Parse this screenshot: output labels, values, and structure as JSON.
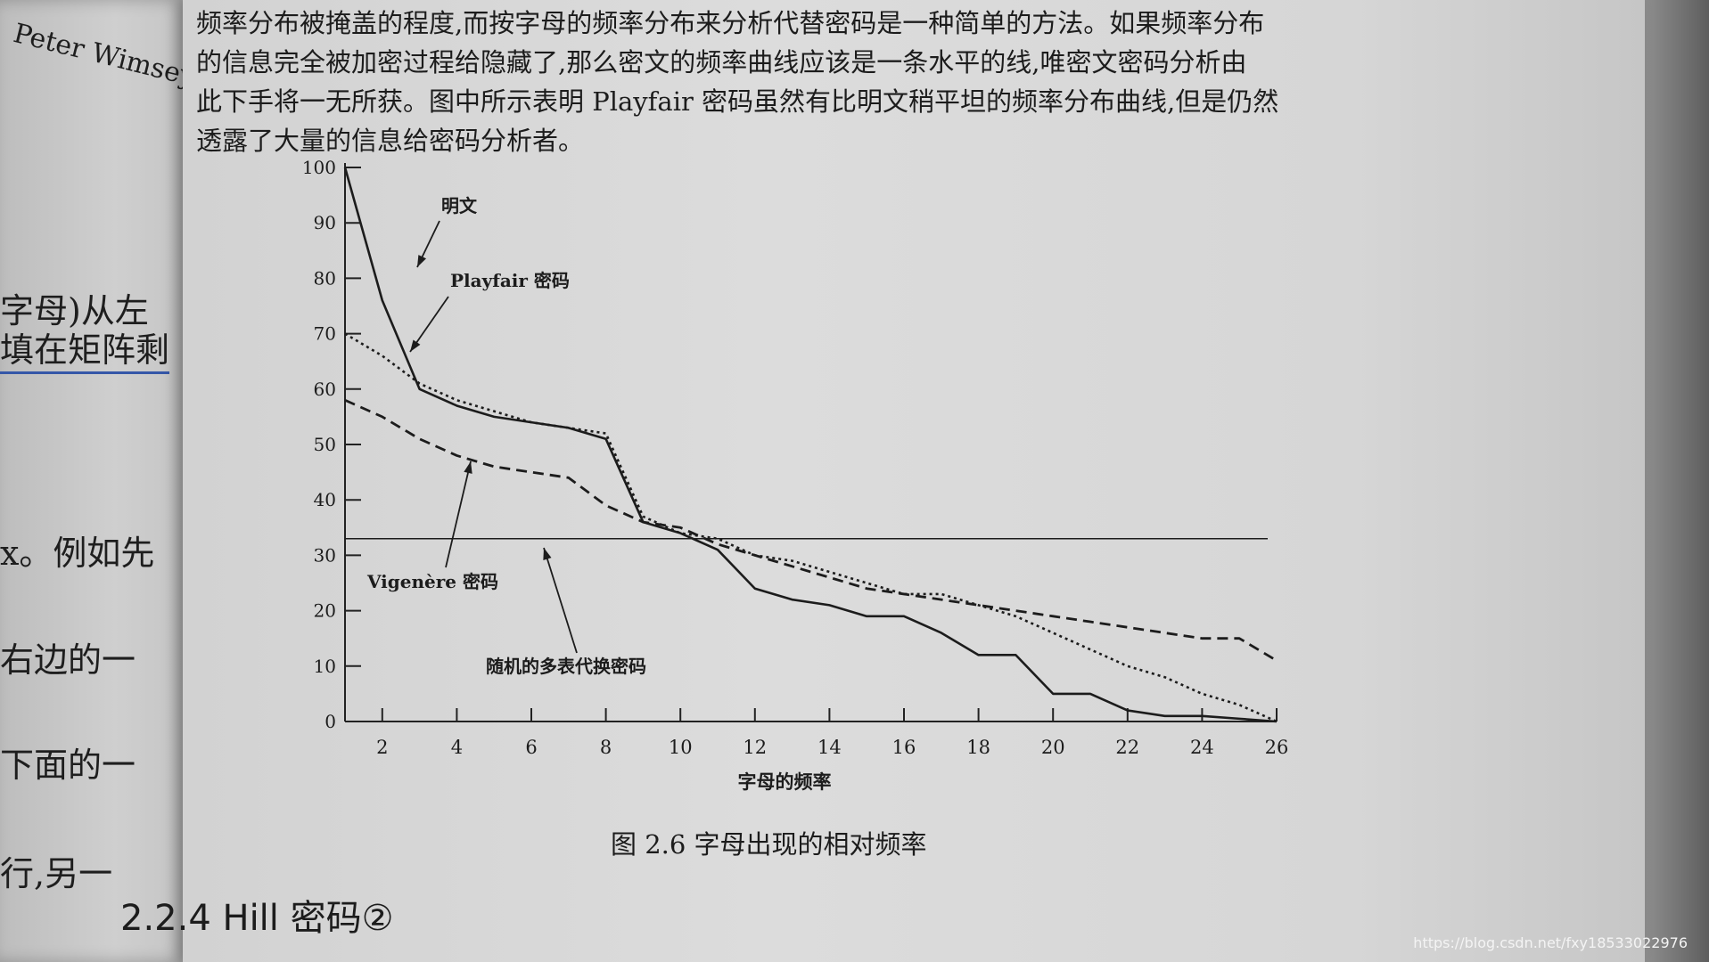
{
  "left_page": {
    "fragments": [
      "Peter Wimsey",
      "字母)从左",
      "填在矩阵剩",
      "x。例如先",
      "右边的一",
      "下面的一",
      "行,另一"
    ]
  },
  "paragraph": {
    "lines": [
      "频率分布被掩盖的程度,而按字母的频率分布来分析代替密码是一种简单的方法。如果频率分布",
      "的信息完全被加密过程给隐藏了,那么密文的频率曲线应该是一条水平的线,唯密文密码分析由",
      "此下手将一无所获。图中所示表明 Playfair 密码虽然有比明文稍平坦的频率分布曲线,但是仍然",
      "透露了大量的信息给密码分析者。"
    ]
  },
  "chart_data": {
    "type": "line",
    "title": "",
    "xlabel": "字母的频率",
    "ylabel": "",
    "xlim": [
      1,
      26
    ],
    "ylim": [
      0,
      100
    ],
    "x_ticks": [
      2,
      4,
      6,
      8,
      10,
      12,
      14,
      16,
      18,
      20,
      22,
      24,
      26
    ],
    "y_ticks": [
      0,
      10,
      20,
      30,
      40,
      50,
      60,
      70,
      80,
      90,
      100
    ],
    "grid": false,
    "annotations": [
      "明文",
      "Playfair 密码",
      "Vigenère 密码",
      "随机的多表代换密码"
    ],
    "series": [
      {
        "name": "明文",
        "style": "solid",
        "x": [
          1,
          2,
          3,
          4,
          5,
          6,
          7,
          8,
          9,
          10,
          11,
          12,
          13,
          14,
          15,
          16,
          17,
          18,
          19,
          20,
          21,
          22,
          23,
          24,
          25,
          26
        ],
        "y": [
          100,
          76,
          60,
          57,
          55,
          54,
          53,
          51,
          36,
          34,
          31,
          24,
          22,
          21,
          19,
          19,
          16,
          12,
          12,
          5,
          5,
          2,
          1,
          1,
          0.5,
          0
        ]
      },
      {
        "name": "Playfair 密码",
        "style": "dotted",
        "x": [
          1,
          2,
          3,
          4,
          5,
          6,
          7,
          8,
          9,
          10,
          11,
          12,
          13,
          14,
          15,
          16,
          17,
          18,
          19,
          20,
          21,
          22,
          23,
          24,
          25,
          26
        ],
        "y": [
          70,
          66,
          61,
          58,
          56,
          54,
          53,
          52,
          37,
          34,
          33,
          30,
          29,
          27,
          25,
          23,
          23,
          21,
          19,
          16,
          13,
          10,
          8,
          5,
          3,
          0
        ]
      },
      {
        "name": "Vigenère 密码",
        "style": "dashed",
        "x": [
          1,
          2,
          3,
          4,
          5,
          6,
          7,
          8,
          9,
          10,
          11,
          12,
          13,
          14,
          15,
          16,
          17,
          18,
          19,
          20,
          21,
          22,
          23,
          24,
          25,
          26
        ],
        "y": [
          58,
          55,
          51,
          48,
          46,
          45,
          44,
          39,
          36,
          35,
          32,
          30,
          28,
          26,
          24,
          23,
          22,
          21,
          20,
          19,
          18,
          17,
          16,
          15,
          15,
          11
        ]
      },
      {
        "name": "随机的多表代换密码",
        "style": "solid-thin",
        "x": [
          1,
          26
        ],
        "y": [
          33,
          33
        ]
      }
    ]
  },
  "figure": {
    "caption": "图 2.6    字母出现的相对频率"
  },
  "section": {
    "heading": "2.2.4   Hill 密码②"
  },
  "watermark": "https://blog.csdn.net/fxy18533022976"
}
